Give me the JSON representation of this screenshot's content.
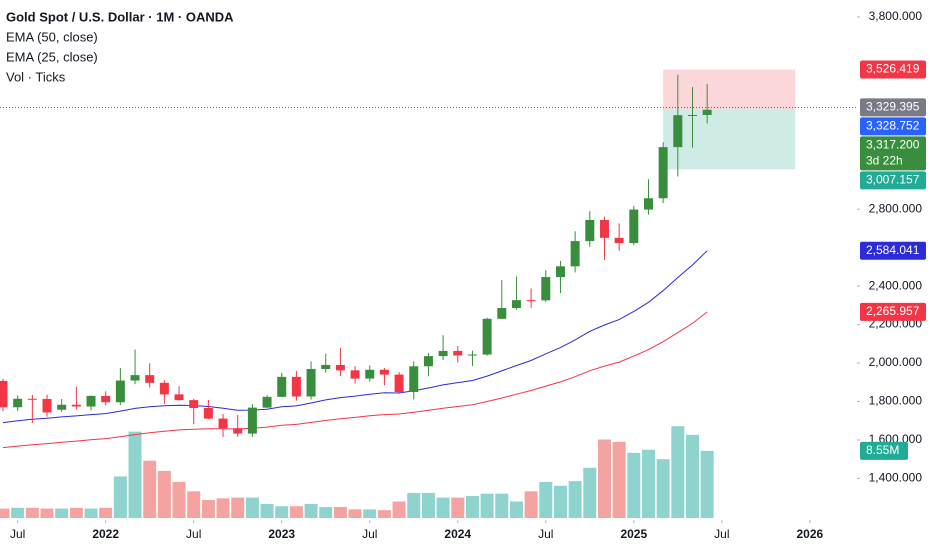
{
  "chart_data": {
    "type": "candlestick",
    "title": "Gold Spot / U.S. Dollar · 1M · OANDA",
    "legend": [
      "EMA (50, close)",
      "EMA (25, close)",
      "Vol · Ticks"
    ],
    "categories": [
      "2021-06",
      "2021-07",
      "2021-08",
      "2021-09",
      "2021-10",
      "2021-11",
      "2021-12",
      "2022-01",
      "2022-02",
      "2022-03",
      "2022-04",
      "2022-05",
      "2022-06",
      "2022-07",
      "2022-08",
      "2022-09",
      "2022-10",
      "2022-11",
      "2022-12",
      "2023-01",
      "2023-02",
      "2023-03",
      "2023-04",
      "2023-05",
      "2023-06",
      "2023-07",
      "2023-08",
      "2023-09",
      "2023-10",
      "2023-11",
      "2023-12",
      "2024-01",
      "2024-02",
      "2024-03",
      "2024-04",
      "2024-05",
      "2024-06",
      "2024-07",
      "2024-08",
      "2024-09",
      "2024-10",
      "2024-11",
      "2024-12",
      "2025-01",
      "2025-02",
      "2025-03",
      "2025-04",
      "2025-05",
      "2025-06"
    ],
    "open": [
      1907,
      1770,
      1814,
      1813,
      1757,
      1783,
      1774,
      1829,
      1796,
      1909,
      1937,
      1897,
      1837,
      1807,
      1766,
      1711,
      1661,
      1633,
      1768,
      1824,
      1928,
      1826,
      1969,
      1990,
      1962,
      1919,
      1965,
      1940,
      1849,
      1983,
      2036,
      2063,
      2039,
      2044,
      2230,
      2286,
      2327,
      2326,
      2447,
      2503,
      2634,
      2744,
      2651,
      2624,
      2798,
      2857,
      3123,
      3289,
      3290
    ],
    "high": [
      1917,
      1832,
      1834,
      1836,
      1813,
      1877,
      1831,
      1853,
      1974,
      2070,
      1998,
      1910,
      1879,
      1814,
      1808,
      1735,
      1730,
      1786,
      1833,
      1949,
      1959,
      2009,
      2049,
      2079,
      1984,
      1987,
      1974,
      1953,
      2009,
      2052,
      2145,
      2088,
      2065,
      2236,
      2431,
      2450,
      2388,
      2483,
      2531,
      2685,
      2790,
      2761,
      2726,
      2817,
      2956,
      3148,
      3500,
      3435,
      3452
    ],
    "low": [
      1750,
      1750,
      1688,
      1721,
      1746,
      1758,
      1753,
      1780,
      1782,
      1890,
      1872,
      1787,
      1805,
      1681,
      1709,
      1615,
      1617,
      1616,
      1765,
      1823,
      1804,
      1810,
      1950,
      1932,
      1893,
      1903,
      1885,
      1846,
      1810,
      1931,
      2016,
      2002,
      1984,
      2039,
      2228,
      2277,
      2287,
      2318,
      2364,
      2471,
      2604,
      2536,
      2583,
      2614,
      2772,
      2832,
      2970,
      3120,
      3246
    ],
    "close": [
      1770,
      1814,
      1813,
      1743,
      1783,
      1774,
      1829,
      1796,
      1909,
      1937,
      1897,
      1837,
      1807,
      1766,
      1711,
      1661,
      1633,
      1768,
      1824,
      1928,
      1826,
      1969,
      1990,
      1962,
      1919,
      1965,
      1940,
      1849,
      1983,
      2036,
      2063,
      2039,
      2044,
      2230,
      2286,
      2327,
      2326,
      2447,
      2503,
      2634,
      2744,
      2651,
      2624,
      2798,
      2857,
      3123,
      3289,
      3290,
      3317.2
    ],
    "up_color": "#388e3c",
    "down_color": "#f23645",
    "volume": [
      1.2,
      1.3,
      1.3,
      1.2,
      1.2,
      1.3,
      1.2,
      1.3,
      5.3,
      11.0,
      7.3,
      6.0,
      4.6,
      3.4,
      2.3,
      2.5,
      2.6,
      2.6,
      1.8,
      1.5,
      1.5,
      1.8,
      1.4,
      1.4,
      1.1,
      1.1,
      1.0,
      2.1,
      3.2,
      3.2,
      2.6,
      2.6,
      2.8,
      3.1,
      3.1,
      2.1,
      3.4,
      4.6,
      4.1,
      4.7,
      6.4,
      10.0,
      9.7,
      8.3,
      8.7,
      7.5,
      11.7,
      10.6,
      8.55
    ],
    "volume_up_color": "#8fd3cf",
    "volume_down_color": "#f5a3a1",
    "volume_ylim": [
      0,
      66
    ],
    "series": [
      {
        "name": "EMA (50, close)",
        "color": "#f23645",
        "values": [
          1560,
          1568,
          1575,
          1581,
          1588,
          1594,
          1601,
          1607,
          1617,
          1628,
          1637,
          1645,
          1652,
          1656,
          1658,
          1658,
          1657,
          1661,
          1667,
          1676,
          1681,
          1691,
          1701,
          1710,
          1717,
          1726,
          1732,
          1735,
          1744,
          1754,
          1765,
          1774,
          1783,
          1800,
          1818,
          1838,
          1857,
          1880,
          1902,
          1929,
          1960,
          1984,
          2005,
          2036,
          2070,
          2111,
          2158,
          2206,
          2266
        ]
      },
      {
        "name": "EMA (25, close)",
        "color": "#2b2bd9",
        "values": [
          1690,
          1700,
          1708,
          1713,
          1720,
          1725,
          1732,
          1737,
          1750,
          1764,
          1773,
          1778,
          1780,
          1779,
          1774,
          1765,
          1754,
          1755,
          1760,
          1773,
          1777,
          1792,
          1808,
          1820,
          1828,
          1838,
          1845,
          1844,
          1856,
          1870,
          1886,
          1898,
          1909,
          1932,
          1959,
          1987,
          2013,
          2048,
          2080,
          2120,
          2165,
          2198,
          2226,
          2268,
          2316,
          2376,
          2445,
          2510,
          2584
        ]
      }
    ],
    "ylim": [
      1194,
      3888
    ],
    "yticks": [
      {
        "value": 3800,
        "label": "3,800.000"
      },
      {
        "value": 2800,
        "label": "2,800.000"
      },
      {
        "value": 2400,
        "label": "2,400.000"
      },
      {
        "value": 2200,
        "label": "2,200.000"
      },
      {
        "value": 2000,
        "label": "2,000.000"
      },
      {
        "value": 1800,
        "label": "1,800.000"
      },
      {
        "value": 1600,
        "label": "1,600.000"
      },
      {
        "value": 1400,
        "label": "1,400.000"
      }
    ],
    "xticks": [
      {
        "value": "2021-07",
        "label": "Jul"
      },
      {
        "value": "2022-01",
        "label": "2022"
      },
      {
        "value": "2022-07",
        "label": "Jul"
      },
      {
        "value": "2023-01",
        "label": "2023"
      },
      {
        "value": "2023-07",
        "label": "Jul"
      },
      {
        "value": "2024-01",
        "label": "2024"
      },
      {
        "value": "2024-07",
        "label": "Jul"
      },
      {
        "value": "2025-01",
        "label": "2025"
      },
      {
        "value": "2025-07",
        "label": "Jul"
      },
      {
        "value": "2026-01",
        "label": "2026"
      }
    ],
    "grid": false,
    "current_price_line": 3328.752,
    "position_box": {
      "stop": 3526.419,
      "entry": 3317.2,
      "target": 3007.157,
      "start": "2025-03",
      "end": "2025-12"
    },
    "price_labels": [
      {
        "value": 3526.419,
        "label": "3,526.419",
        "color": "#f23645"
      },
      {
        "value": 3329.395,
        "label": "3,329.395",
        "color": "#787b86"
      },
      {
        "value": 3328.752,
        "label": "3,328.752",
        "color": "#2962ff"
      },
      {
        "value": 3317.2,
        "label": "3,317.200",
        "color": "#388e3c"
      },
      {
        "value": 3007.157,
        "label": "3,007.157",
        "color": "#22ab94"
      },
      {
        "value": 2584.041,
        "label": "2,584.041",
        "color": "#2b2bd9"
      },
      {
        "value": 2265.957,
        "label": "2,265.957",
        "color": "#f23645"
      }
    ],
    "countdown": "3d 22h",
    "volume_label": {
      "value": 8.55,
      "label": "8.55M",
      "color": "#22ab94"
    }
  }
}
